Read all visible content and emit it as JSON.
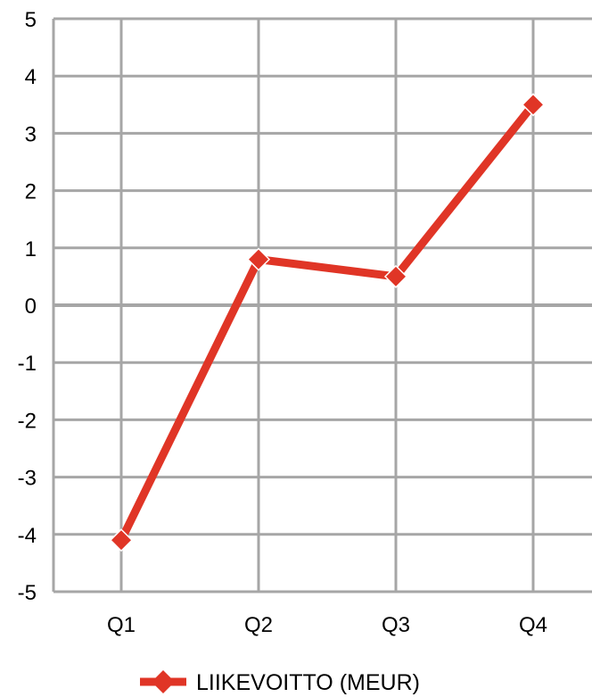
{
  "chart_data": {
    "type": "line",
    "categories": [
      "Q1",
      "Q2",
      "Q3",
      "Q4"
    ],
    "series": [
      {
        "name": "LIIKEVOITTO (MEUR)",
        "values": [
          -4.1,
          0.8,
          0.5,
          3.5
        ],
        "color": "#e03526"
      }
    ],
    "ylim": [
      -5,
      5
    ],
    "yticks": [
      "5",
      "4",
      "3",
      "2",
      "1",
      "0",
      "-1",
      "-2",
      "-3",
      "-4",
      "-5"
    ],
    "grid": true,
    "legend_position": "bottom-center",
    "marker": "diamond"
  }
}
